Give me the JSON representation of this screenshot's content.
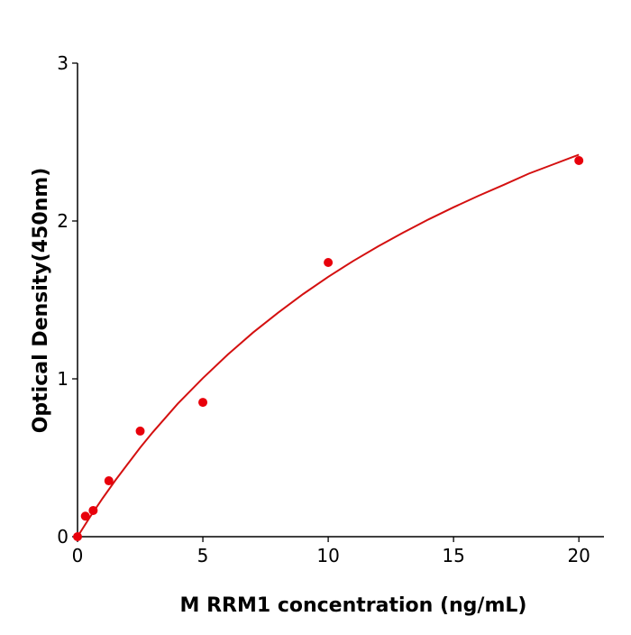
{
  "chart_data": {
    "type": "scatter",
    "title": "",
    "xlabel": "M  RRM1 concentration (ng/mL)",
    "ylabel": "Optical Density(450nm)",
    "xlim": [
      0,
      21
    ],
    "ylim": [
      0,
      3
    ],
    "xticks": [
      "0",
      "5",
      "10",
      "15",
      "20"
    ],
    "yticks": [
      "0",
      "1",
      "2",
      "3"
    ],
    "grid": false,
    "series": [
      {
        "type": "scatter",
        "color": "#e8000b",
        "x": [
          0,
          0.3125,
          0.625,
          1.25,
          2.5,
          5,
          10,
          20
        ],
        "y": [
          0.0,
          0.13,
          0.166,
          0.354,
          0.669,
          0.851,
          1.737,
          2.383
        ]
      },
      {
        "type": "line",
        "color": "#d41010",
        "x": [
          0,
          0.5,
          1,
          1.5,
          2,
          2.5,
          3,
          4,
          5,
          6,
          7,
          8,
          9,
          10,
          11,
          12,
          13,
          14,
          15,
          16,
          17,
          18,
          19,
          20
        ],
        "y": [
          0,
          0.125,
          0.243,
          0.355,
          0.46,
          0.564,
          0.661,
          0.842,
          1.004,
          1.155,
          1.293,
          1.419,
          1.537,
          1.646,
          1.747,
          1.84,
          1.927,
          2.01,
          2.087,
          2.16,
          2.229,
          2.3,
          2.36,
          2.42
        ]
      }
    ]
  }
}
